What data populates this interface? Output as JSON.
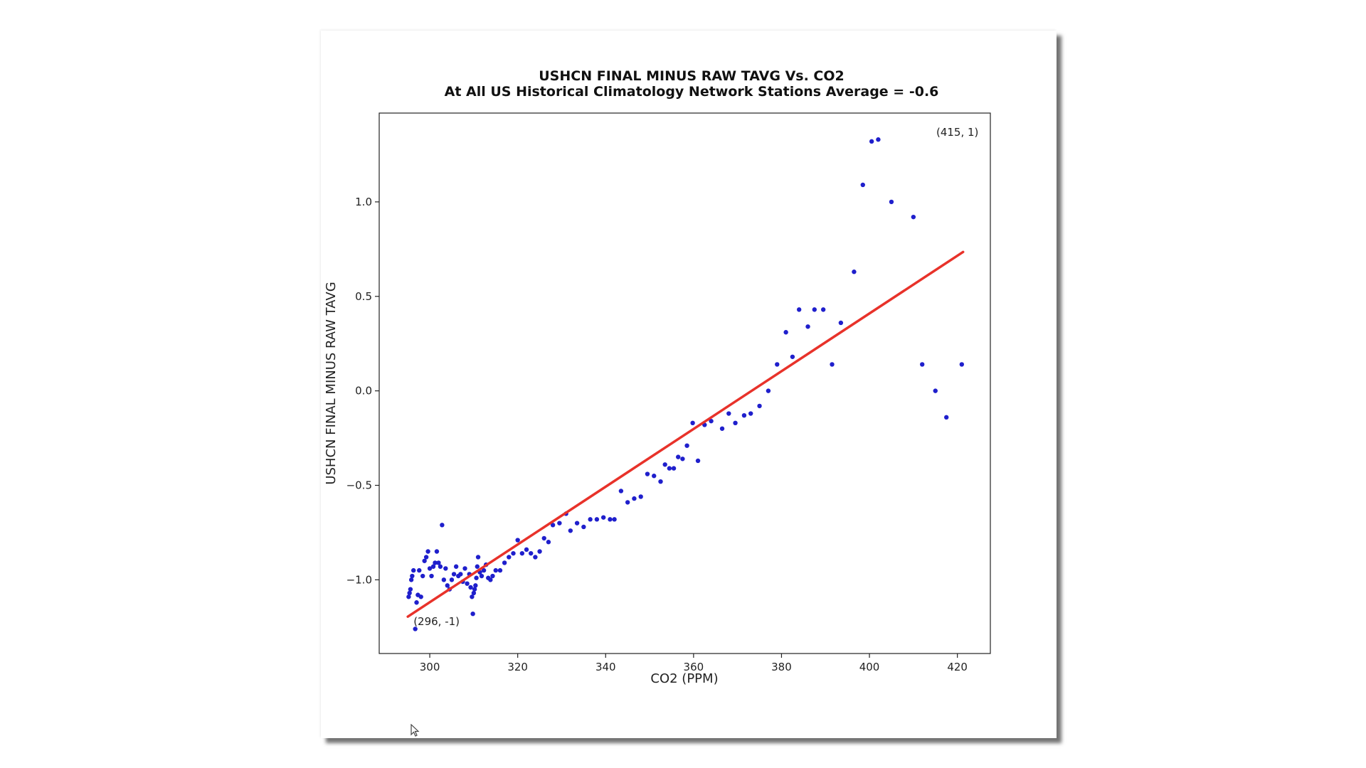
{
  "chart_data": {
    "type": "scatter",
    "title": "USHCN FINAL MINUS RAW TAVG Vs. CO2",
    "subtitle": "At All US Historical Climatology Network Stations Average = -0.6",
    "xlabel": "CO2 (PPM)",
    "ylabel": "USHCN FINAL MINUS RAW TAVG",
    "xlim": [
      288.5,
      427.5
    ],
    "ylim": [
      -1.39,
      1.47
    ],
    "xticks": [
      300,
      320,
      340,
      360,
      380,
      400,
      420
    ],
    "yticks": [
      -1.0,
      -0.5,
      0.0,
      0.5,
      1.0
    ],
    "xtick_labels": [
      "300",
      "320",
      "340",
      "360",
      "380",
      "400",
      "420"
    ],
    "ytick_labels": [
      "−1.0",
      "−0.5",
      "0.0",
      "0.5",
      "1.0"
    ],
    "grid": false,
    "point_color": "#1f1fcc",
    "trend_color": "#e8322a",
    "trend_line": {
      "x": [
        295,
        421.3
      ],
      "y": [
        -1.195,
        0.735
      ]
    },
    "annotations": [
      {
        "text": "(296, -1)",
        "x": 296.3,
        "y": -1.24
      },
      {
        "text": "(415, 1)",
        "x": 415.2,
        "y": 1.35
      }
    ],
    "points": {
      "x": [
        295.2,
        295.4,
        295.6,
        295.8,
        296.0,
        296.3,
        296.7,
        297.0,
        297.3,
        297.6,
        298.0,
        298.4,
        298.8,
        299.2,
        299.6,
        300.0,
        300.4,
        300.8,
        301.2,
        301.6,
        302.0,
        302.4,
        302.8,
        303.2,
        303.6,
        304.0,
        304.5,
        305.0,
        305.5,
        306.0,
        306.5,
        307.0,
        307.5,
        308.0,
        308.5,
        309.0,
        309.3,
        309.6,
        309.8,
        310.0,
        310.2,
        310.4,
        310.6,
        310.8,
        311.0,
        311.4,
        311.8,
        312.3,
        312.8,
        313.3,
        313.8,
        314.3,
        315.0,
        316.0,
        317.0,
        318.0,
        319.0,
        320.0,
        321.0,
        322.0,
        323.0,
        324.0,
        325.0,
        326.0,
        327.0,
        328.0,
        329.5,
        331.0,
        332.0,
        333.5,
        335.0,
        336.5,
        338.0,
        339.5,
        341.0,
        342.0,
        343.5,
        345.0,
        346.5,
        348.0,
        349.5,
        351.0,
        352.5,
        353.5,
        354.5,
        355.5,
        356.5,
        357.5,
        358.5,
        359.8,
        361.0,
        362.5,
        364.0,
        366.5,
        368.0,
        369.5,
        371.5,
        373.0,
        375.0,
        377.0,
        379.0,
        381.0,
        382.5,
        384.0,
        386.0,
        387.5,
        389.5,
        391.5,
        393.5,
        396.5,
        398.5,
        400.5,
        402.0,
        405.0,
        410.0,
        412.0,
        415.0,
        417.5,
        421.0
      ],
      "y": [
        -1.09,
        -1.07,
        -1.05,
        -1.0,
        -0.98,
        -0.95,
        -1.26,
        -1.12,
        -1.08,
        -0.95,
        -1.09,
        -0.98,
        -0.9,
        -0.88,
        -0.85,
        -0.94,
        -0.98,
        -0.93,
        -0.91,
        -0.85,
        -0.91,
        -0.93,
        -0.71,
        -1.0,
        -0.94,
        -1.03,
        -1.05,
        -1.0,
        -0.97,
        -0.93,
        -0.98,
        -0.97,
        -1.01,
        -0.94,
        -1.02,
        -0.97,
        -1.04,
        -1.09,
        -1.18,
        -1.07,
        -1.05,
        -1.03,
        -0.99,
        -0.93,
        -0.88,
        -0.96,
        -0.98,
        -0.95,
        -0.92,
        -0.99,
        -1.0,
        -0.98,
        -0.95,
        -0.95,
        -0.91,
        -0.88,
        -0.86,
        -0.79,
        -0.86,
        -0.84,
        -0.86,
        -0.88,
        -0.85,
        -0.78,
        -0.8,
        -0.71,
        -0.7,
        -0.65,
        -0.74,
        -0.7,
        -0.72,
        -0.68,
        -0.68,
        -0.67,
        -0.68,
        -0.68,
        -0.53,
        -0.59,
        -0.57,
        -0.56,
        -0.44,
        -0.45,
        -0.48,
        -0.39,
        -0.41,
        -0.41,
        -0.35,
        -0.36,
        -0.29,
        -0.17,
        -0.37,
        -0.18,
        -0.16,
        -0.2,
        -0.12,
        -0.17,
        -0.13,
        -0.12,
        -0.08,
        0.0,
        0.14,
        0.31,
        0.18,
        0.43,
        0.34,
        0.43,
        0.43,
        0.14,
        0.36,
        0.63,
        1.09,
        1.32,
        1.33,
        1.0,
        0.92,
        0.14,
        0.0,
        -0.14,
        0.14
      ]
    }
  }
}
